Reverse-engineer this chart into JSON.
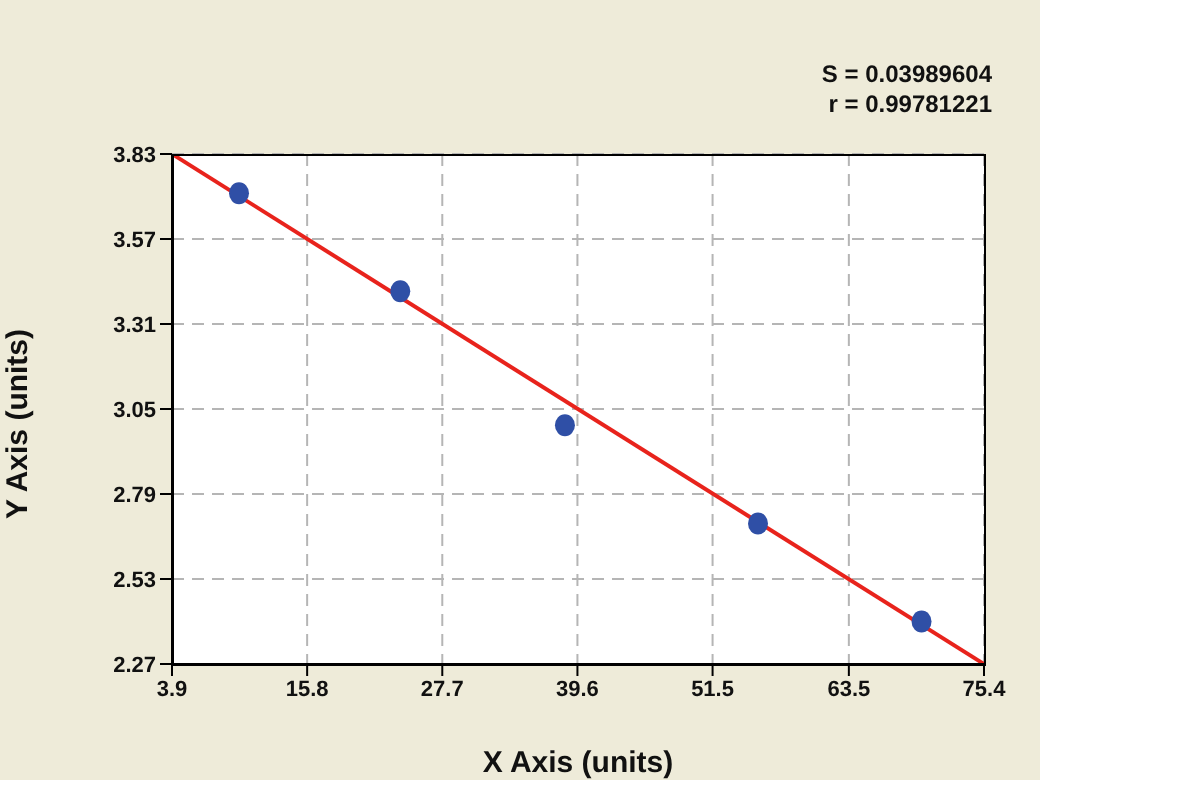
{
  "chart_data": {
    "type": "scatter",
    "xlabel": "X Axis (units)",
    "ylabel": "Y Axis (units)",
    "annotations": [
      "S = 0.03989604",
      "r = 0.99781221"
    ],
    "x": [
      9.8,
      24.0,
      38.5,
      55.5,
      69.9
    ],
    "series": [
      {
        "color": "#2f4fa6",
        "values": [
          3.71,
          3.41,
          3.0,
          2.7,
          2.4
        ],
        "marker": "circle"
      },
      {
        "type": "line",
        "color": "#e8231c",
        "x": [
          3.9,
          75.4
        ],
        "values": [
          3.83,
          2.27
        ],
        "marker": "none",
        "line_style": "solid"
      }
    ],
    "xlim": [
      3.9,
      75.4
    ],
    "ylim": [
      2.27,
      3.83
    ],
    "xticks": [
      3.9,
      15.8,
      27.7,
      39.6,
      51.5,
      63.5,
      75.4
    ],
    "yticks": [
      2.27,
      2.53,
      2.79,
      3.05,
      3.31,
      3.57,
      3.83
    ],
    "grid": true,
    "legend": false
  }
}
